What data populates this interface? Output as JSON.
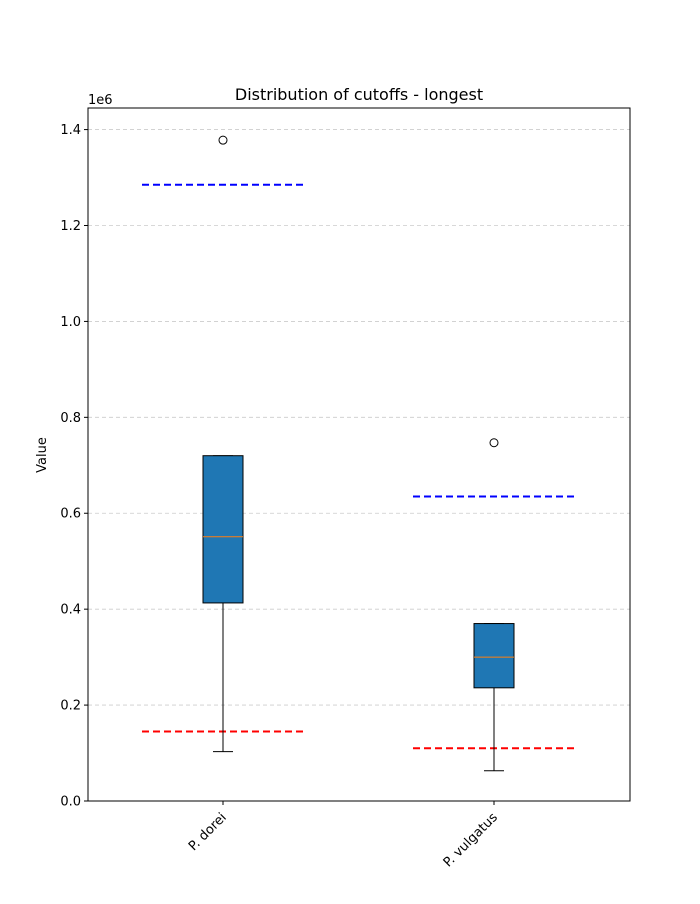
{
  "chart_data": {
    "type": "box",
    "title": "Distribution of cutoffs - longest",
    "xlabel": "",
    "ylabel": "Value",
    "offset_label": "1e6",
    "ylim": [
      0,
      1.445
    ],
    "yticks": [
      0.0,
      0.2,
      0.4,
      0.6,
      0.8,
      1.0,
      1.2,
      1.4
    ],
    "ytick_labels": [
      "0.0",
      "0.2",
      "0.4",
      "0.6",
      "0.8",
      "1.0",
      "1.2",
      "1.4"
    ],
    "grid": "y-dashed",
    "categories": [
      "P. dorei",
      "P. vulgatus"
    ],
    "boxes": [
      {
        "label": "P. dorei",
        "whisker_low": 0.103,
        "q1": 0.413,
        "median": 0.551,
        "q3": 0.72,
        "whisker_high": 0.72,
        "outliers": [
          1.378
        ]
      },
      {
        "label": "P. vulgatus",
        "whisker_low": 0.063,
        "q1": 0.236,
        "median": 0.3,
        "q3": 0.37,
        "whisker_high": 0.37,
        "outliers": [
          0.747
        ]
      }
    ],
    "reference_lines": [
      {
        "category": "P. dorei",
        "upper": 1.285,
        "lower": 0.145
      },
      {
        "category": "P. vulgatus",
        "upper": 0.635,
        "lower": 0.11
      }
    ],
    "colors": {
      "box_fill": "#1f77b4",
      "median": "#ff7f0e",
      "upper_line": "#0000ff",
      "lower_line": "#ff0000",
      "grid": "#cccccc"
    }
  }
}
